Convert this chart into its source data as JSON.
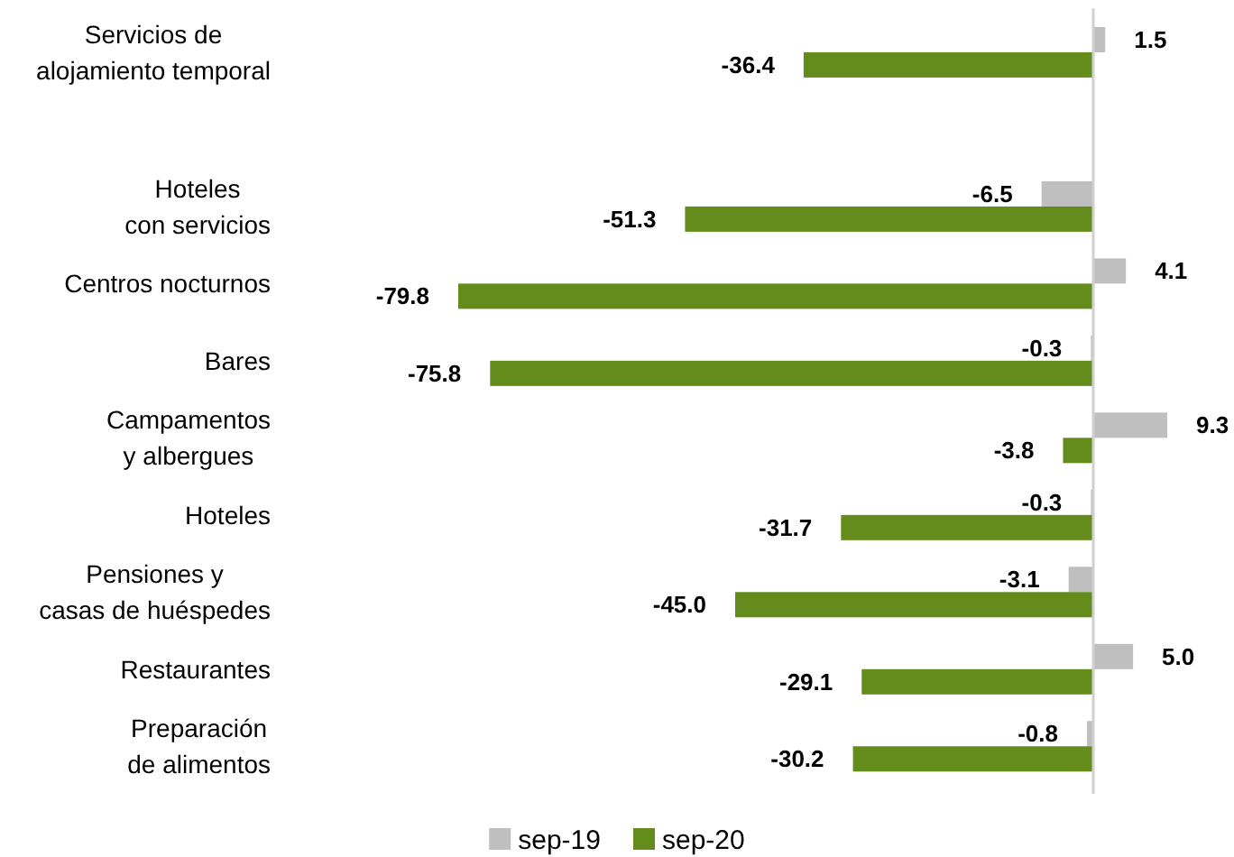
{
  "chart_data": {
    "type": "bar",
    "orientation": "horizontal",
    "categories": [
      "Servicios de\nalojamiento temporal",
      null,
      "Hoteles\ncon servicios",
      "Centros nocturnos",
      "Bares",
      "Campamentos\ny albergues",
      "Hoteles",
      "Pensiones y\ncasas de huéspedes",
      "Restaurantes",
      "Preparación\nde alimentos"
    ],
    "series": [
      {
        "name": "sep-19",
        "color": "#bfbfbf",
        "values": [
          1.5,
          null,
          -6.5,
          4.1,
          -0.3,
          9.3,
          -0.3,
          -3.1,
          5.0,
          -0.8
        ],
        "value_labels": [
          "1.5",
          null,
          "-6.5",
          "4.1",
          "-0.3",
          "9.3",
          "-0.3",
          "-3.1",
          "5.0",
          "-0.8"
        ]
      },
      {
        "name": "sep-20",
        "color": "#638c1c",
        "values": [
          -36.4,
          null,
          -51.3,
          -79.8,
          -75.8,
          -3.8,
          -31.7,
          -45.0,
          -29.1,
          -30.2
        ],
        "value_labels": [
          "-36.4",
          null,
          "-51.3",
          "-79.8",
          "-75.8",
          "-3.8",
          "-31.7",
          "-45.0",
          "-29.1",
          "-30.2"
        ]
      }
    ],
    "tick_labels": "y",
    "legend": "bottom"
  }
}
